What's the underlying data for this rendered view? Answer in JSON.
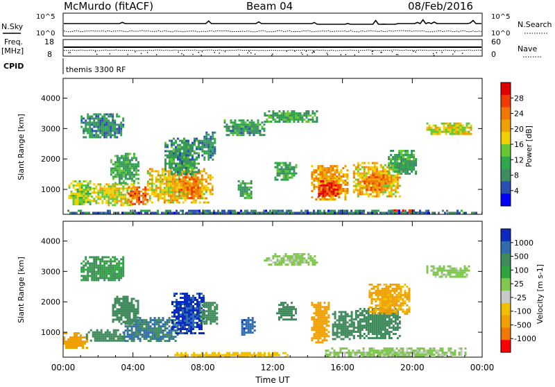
{
  "header": {
    "station": "McMurdo (fitACF)",
    "beam": "Beam 04",
    "date": "08/Feb/2016"
  },
  "top_panels": {
    "nsky_label": "N.Sky",
    "nsky_ticks": [
      "10^5",
      "10^0"
    ],
    "nsearch_label": "N.Search",
    "nsearch_ticks": [
      "10^5",
      "10^0"
    ],
    "freq_label": "Freq.",
    "freq_unit": "[MHz]",
    "freq_ticks": [
      "18",
      "8"
    ],
    "nave_label": "Nave",
    "nave_ticks": [
      "60",
      "0"
    ],
    "cpid_label": "CPID",
    "cpid_value": "themis 3300 RF"
  },
  "colors": {
    "power_scale": [
      "#0000ff",
      "#2a4fb0",
      "#3c8c64",
      "#2ea84a",
      "#64c832",
      "#f0d000",
      "#f0a000",
      "#f07800",
      "#f03c00",
      "#e00000"
    ],
    "velocity_scale": [
      "#0b2bbf",
      "#2f6db0",
      "#3f8a5a",
      "#2da640",
      "#80c850",
      "#c8c8c8",
      "#f0c000",
      "#f0a000",
      "#f07800",
      "#ff0000"
    ]
  },
  "chart_data": [
    {
      "type": "heatmap",
      "title": "",
      "ylabel": "Slant Range [km]",
      "xlabel": "",
      "x_ticks": [
        "00:00",
        "04:00",
        "08:00",
        "12:00",
        "16:00",
        "20:00",
        "00:00"
      ],
      "x_range_hours": [
        0,
        24
      ],
      "y_ticks": [
        1000,
        2000,
        3000,
        4000
      ],
      "ylim": [
        180,
        4650
      ],
      "colorbar": {
        "label": "Power [dB]",
        "ticks": [
          4,
          8,
          12,
          16,
          20,
          24,
          28
        ],
        "range": [
          0,
          30
        ],
        "colors": [
          "#0000ff",
          "#2a4fb0",
          "#3c8c64",
          "#2ea84a",
          "#64c832",
          "#f0d000",
          "#f0a000",
          "#f07800",
          "#f03c00",
          "#e00000"
        ]
      },
      "regions": [
        {
          "t": [
            0.3,
            1.6
          ],
          "r": [
            500,
            1300
          ],
          "value": 14
        },
        {
          "t": [
            1.6,
            4.0
          ],
          "r": [
            500,
            1200
          ],
          "value": 16
        },
        {
          "t": [
            3.7,
            4.8
          ],
          "r": [
            500,
            1100
          ],
          "value": 24
        },
        {
          "t": [
            2.7,
            4.3
          ],
          "r": [
            1200,
            2200
          ],
          "value": 10
        },
        {
          "t": [
            4.8,
            8.5
          ],
          "r": [
            600,
            1700
          ],
          "value": 18
        },
        {
          "t": [
            6.6,
            7.8
          ],
          "r": [
            700,
            1500
          ],
          "value": 22
        },
        {
          "t": [
            5.8,
            7.8
          ],
          "r": [
            1500,
            2700
          ],
          "value": 9
        },
        {
          "t": [
            7.8,
            8.7
          ],
          "r": [
            2000,
            2900
          ],
          "value": 8
        },
        {
          "t": [
            1.0,
            3.5
          ],
          "r": [
            2700,
            3500
          ],
          "value": 8
        },
        {
          "t": [
            10.0,
            10.8
          ],
          "r": [
            700,
            1300
          ],
          "value": 10
        },
        {
          "t": [
            9.2,
            11.5
          ],
          "r": [
            2800,
            3300
          ],
          "value": 9
        },
        {
          "t": [
            12.1,
            13.3
          ],
          "r": [
            1300,
            1900
          ],
          "value": 10
        },
        {
          "t": [
            11.5,
            14.5
          ],
          "r": [
            3200,
            3600
          ],
          "value": 10
        },
        {
          "t": [
            14.2,
            16.3
          ],
          "r": [
            700,
            1800
          ],
          "value": 20
        },
        {
          "t": [
            14.6,
            15.8
          ],
          "r": [
            800,
            1300
          ],
          "value": 26
        },
        {
          "t": [
            16.6,
            19.3
          ],
          "r": [
            800,
            1900
          ],
          "value": 18
        },
        {
          "t": [
            17.1,
            18.6
          ],
          "r": [
            1000,
            1500
          ],
          "value": 22
        },
        {
          "t": [
            18.6,
            20.2
          ],
          "r": [
            1500,
            2300
          ],
          "value": 10
        },
        {
          "t": [
            20.8,
            23.4
          ],
          "r": [
            2800,
            3200
          ],
          "value": 16
        },
        {
          "t": [
            18.7,
            20.6
          ],
          "r": [
            200,
            340
          ],
          "value": 28
        },
        {
          "t": [
            0.0,
            24.0
          ],
          "r": [
            200,
            330
          ],
          "value": 6
        }
      ]
    },
    {
      "type": "heatmap",
      "title": "",
      "ylabel": "Slant Range [km]",
      "xlabel": "Time UT",
      "x_ticks": [
        "00:00",
        "04:00",
        "08:00",
        "12:00",
        "16:00",
        "20:00",
        "00:00"
      ],
      "x_range_hours": [
        0,
        24
      ],
      "y_ticks": [
        1000,
        2000,
        3000,
        4000
      ],
      "ylim": [
        180,
        4650
      ],
      "colorbar": {
        "label": "Velocity [m s-1]",
        "ticks": [
          "1000",
          "500",
          "100",
          "25",
          "-25",
          "-100",
          "-500",
          "-1000"
        ],
        "colors": [
          "#0b2bbf",
          "#2f6db0",
          "#3f8a5a",
          "#2da640",
          "#80c850",
          "#c8c8c8",
          "#f0c000",
          "#f0a000",
          "#f07800",
          "#ff0000"
        ]
      },
      "regions": [
        {
          "t": [
            0.0,
            1.4
          ],
          "r": [
            500,
            1000
          ],
          "value": -500
        },
        {
          "t": [
            1.3,
            3.5
          ],
          "r": [
            700,
            1100
          ],
          "value": 150
        },
        {
          "t": [
            3.4,
            6.5
          ],
          "r": [
            700,
            1500
          ],
          "value": 300
        },
        {
          "t": [
            2.8,
            4.3
          ],
          "r": [
            1300,
            2200
          ],
          "value": 120
        },
        {
          "t": [
            6.2,
            8.1
          ],
          "r": [
            1000,
            2300
          ],
          "value": 900
        },
        {
          "t": [
            7.8,
            8.8
          ],
          "r": [
            1300,
            2000
          ],
          "value": 200
        },
        {
          "t": [
            1.0,
            3.5
          ],
          "r": [
            2700,
            3500
          ],
          "value": 60
        },
        {
          "t": [
            10.2,
            11.0
          ],
          "r": [
            900,
            1500
          ],
          "value": 600
        },
        {
          "t": [
            12.2,
            13.3
          ],
          "r": [
            1400,
            2000
          ],
          "value": 150
        },
        {
          "t": [
            11.5,
            14.5
          ],
          "r": [
            3200,
            3600
          ],
          "value": -20
        },
        {
          "t": [
            14.2,
            15.2
          ],
          "r": [
            700,
            2000
          ],
          "value": -500
        },
        {
          "t": [
            15.4,
            16.6
          ],
          "r": [
            800,
            1700
          ],
          "value": 200
        },
        {
          "t": [
            16.6,
            19.3
          ],
          "r": [
            800,
            1800
          ],
          "value": 180
        },
        {
          "t": [
            17.5,
            19.8
          ],
          "r": [
            1600,
            2600
          ],
          "value": -400
        },
        {
          "t": [
            20.8,
            23.4
          ],
          "r": [
            2800,
            3200
          ],
          "value": -20
        },
        {
          "t": [
            15.0,
            23.0
          ],
          "r": [
            200,
            500
          ],
          "value": -20
        },
        {
          "t": [
            6.0,
            13.0
          ],
          "r": [
            200,
            350
          ],
          "value": -150
        }
      ]
    }
  ]
}
